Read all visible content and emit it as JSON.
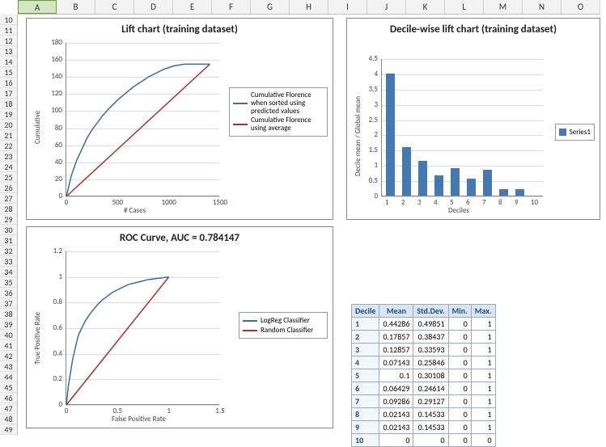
{
  "columns": [
    "A",
    "B",
    "C",
    "D",
    "E",
    "F",
    "G",
    "H",
    "I",
    "J",
    "K",
    "L",
    "M",
    "N",
    "O"
  ],
  "selected_col": "A",
  "rows_start": 10,
  "rows_end": 49,
  "lift_chart": {
    "title": "Lift chart (training dataset)",
    "title_fontsize": 13,
    "xlabel": "# Cases",
    "ylabel": "Cumulative",
    "xlim": [
      0,
      1500
    ],
    "xtick_step": 500,
    "ylim": [
      0,
      180
    ],
    "ytick_step": 20,
    "series": [
      {
        "name": "Cumulative Florence when sorted using predicted values",
        "color": "#3a6ca0",
        "points": [
          [
            0,
            0
          ],
          [
            50,
            25
          ],
          [
            100,
            42
          ],
          [
            150,
            55
          ],
          [
            200,
            68
          ],
          [
            250,
            78
          ],
          [
            300,
            86
          ],
          [
            350,
            94
          ],
          [
            400,
            101
          ],
          [
            450,
            107
          ],
          [
            500,
            113
          ],
          [
            550,
            118
          ],
          [
            600,
            123
          ],
          [
            650,
            128
          ],
          [
            700,
            132
          ],
          [
            750,
            136
          ],
          [
            800,
            140
          ],
          [
            850,
            143
          ],
          [
            900,
            146
          ],
          [
            950,
            149
          ],
          [
            1000,
            151
          ],
          [
            1050,
            153
          ],
          [
            1100,
            154
          ],
          [
            1150,
            155
          ],
          [
            1200,
            155
          ],
          [
            1250,
            155
          ],
          [
            1300,
            155
          ],
          [
            1400,
            155
          ]
        ]
      },
      {
        "name": "Cumulative Florence using average",
        "color": "#a83232",
        "points": [
          [
            0,
            0
          ],
          [
            1400,
            155
          ]
        ]
      }
    ]
  },
  "decile_chart": {
    "title": "Decile-wise lift chart (training dataset)",
    "title_fontsize": 13,
    "xlabel": "Deciles",
    "ylabel": "Decile mean / Global mean",
    "xlim": [
      0.5,
      10.5
    ],
    "ylim": [
      0,
      4.5
    ],
    "ytick_step": 0.5,
    "bar_color": "#4678b4",
    "legend": "Series1",
    "categories": [
      1,
      2,
      3,
      4,
      5,
      6,
      7,
      8,
      9,
      10
    ],
    "values": [
      4.0,
      1.6,
      1.15,
      0.65,
      0.9,
      0.55,
      0.85,
      0.2,
      0.2,
      0
    ]
  },
  "roc_chart": {
    "title": "ROC Curve, AUC = 0.784147",
    "title_fontsize": 13,
    "xlabel": "False Positive Rate",
    "ylabel": "True Positive Rate",
    "xlim": [
      0,
      1.5
    ],
    "xtick_step": 0.5,
    "ylim": [
      0,
      1.2
    ],
    "ytick_step": 0.2,
    "series": [
      {
        "name": "LogReg Classifier",
        "color": "#3a6ca0",
        "points": [
          [
            0,
            0
          ],
          [
            0.02,
            0.15
          ],
          [
            0.04,
            0.25
          ],
          [
            0.06,
            0.35
          ],
          [
            0.08,
            0.42
          ],
          [
            0.1,
            0.49
          ],
          [
            0.12,
            0.55
          ],
          [
            0.15,
            0.6
          ],
          [
            0.18,
            0.65
          ],
          [
            0.22,
            0.7
          ],
          [
            0.26,
            0.74
          ],
          [
            0.3,
            0.78
          ],
          [
            0.35,
            0.82
          ],
          [
            0.4,
            0.85
          ],
          [
            0.45,
            0.88
          ],
          [
            0.5,
            0.9
          ],
          [
            0.55,
            0.92
          ],
          [
            0.6,
            0.94
          ],
          [
            0.7,
            0.96
          ],
          [
            0.8,
            0.98
          ],
          [
            0.9,
            0.99
          ],
          [
            1,
            1
          ]
        ]
      },
      {
        "name": "Random Classifier",
        "color": "#a83232",
        "points": [
          [
            0,
            0
          ],
          [
            1,
            1
          ]
        ]
      }
    ]
  },
  "table": {
    "columns": [
      "Decile",
      "Mean",
      "Std.Dev.",
      "Min.",
      "Max."
    ],
    "rows": [
      [
        "1",
        "0.44286",
        "0.49851",
        "0",
        "1"
      ],
      [
        "2",
        "0.17857",
        "0.38437",
        "0",
        "1"
      ],
      [
        "3",
        "0.12857",
        "0.33593",
        "0",
        "1"
      ],
      [
        "4",
        "0.07143",
        "0.25846",
        "0",
        "1"
      ],
      [
        "5",
        "0.1",
        "0.30108",
        "0",
        "1"
      ],
      [
        "6",
        "0.06429",
        "0.24614",
        "0",
        "1"
      ],
      [
        "7",
        "0.09286",
        "0.29127",
        "0",
        "1"
      ],
      [
        "8",
        "0.02143",
        "0.14533",
        "0",
        "1"
      ],
      [
        "9",
        "0.02143",
        "0.14533",
        "0",
        "1"
      ],
      [
        "10",
        "0",
        "0",
        "0",
        "0"
      ]
    ]
  }
}
